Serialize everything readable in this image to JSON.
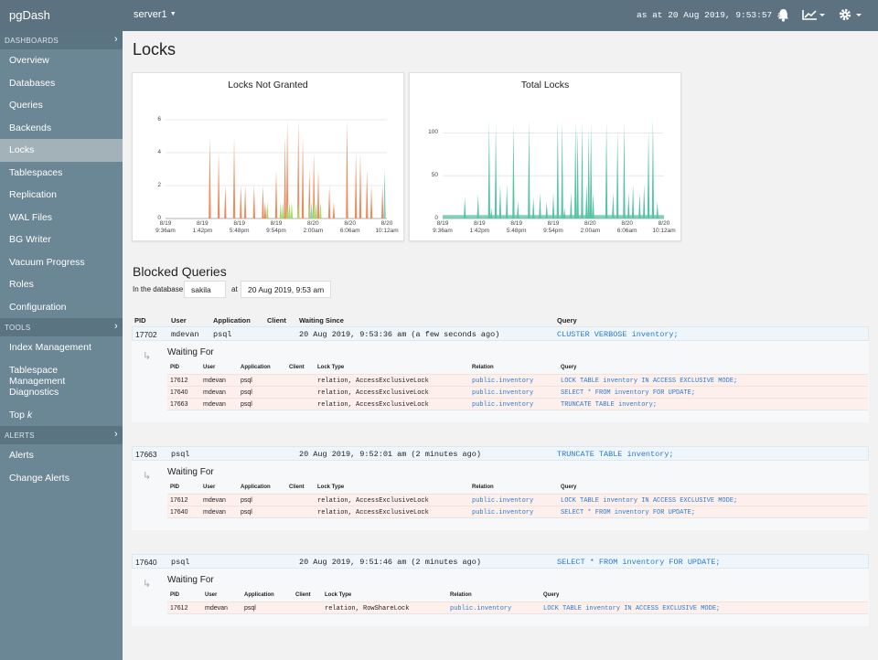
{
  "app": {
    "name": "pgDash",
    "server": "server1",
    "as_at": "as at 20 Aug 2019, 9:53:57 am"
  },
  "sidebar": {
    "dashboards_label": "DASHBOARDS",
    "dashboards": [
      "Overview",
      "Databases",
      "Queries",
      "Backends",
      "Locks",
      "Tablespaces",
      "Replication",
      "WAL Files",
      "BG Writer",
      "Vacuum Progress",
      "Roles",
      "Configuration"
    ],
    "tools_label": "TOOLS",
    "tools": [
      "Index Management",
      "Tablespace Management",
      "Diagnostics",
      "Top "
    ],
    "top_k_suffix": "k",
    "alerts_label": "ALERTS",
    "alerts": [
      "Alerts",
      "Change Alerts"
    ],
    "active": "Locks"
  },
  "page": {
    "title": "Locks",
    "blocked_title": "Blocked Queries",
    "in_db_label": "In the database",
    "database": "sakila",
    "at_label": "at",
    "datetime": "20 Aug 2019, 9:53 am"
  },
  "chart_data": [
    {
      "type": "bar",
      "title": "Locks Not Granted",
      "yticks": [
        "0",
        "2",
        "4",
        "6"
      ],
      "ylim": [
        0,
        6.5
      ],
      "xticks": [
        "8/19|9:36am",
        "8/19|1:42pm",
        "8/19|5:48pm",
        "8/19|9:54pm",
        "8/20|2:00am",
        "8/20|6:06am",
        "8/20|10:12am"
      ],
      "series": [
        {
          "color": "#f08a5d",
          "points": [
            [
              0.2,
              5
            ],
            [
              0.24,
              4
            ],
            [
              0.27,
              2
            ],
            [
              0.31,
              5
            ],
            [
              0.34,
              2
            ],
            [
              0.36,
              2
            ],
            [
              0.4,
              2
            ],
            [
              0.44,
              2
            ],
            [
              0.45,
              1
            ],
            [
              0.5,
              3
            ],
            [
              0.54,
              5
            ],
            [
              0.55,
              6
            ],
            [
              0.6,
              6
            ],
            [
              0.62,
              5
            ],
            [
              0.65,
              3
            ],
            [
              0.67,
              4
            ],
            [
              0.69,
              3
            ],
            [
              0.74,
              2
            ],
            [
              0.76,
              1
            ],
            [
              0.82,
              6
            ],
            [
              0.86,
              4
            ],
            [
              0.88,
              4
            ],
            [
              0.91,
              3
            ],
            [
              0.93,
              2
            ],
            [
              0.98,
              2
            ]
          ]
        },
        {
          "color": "#a6d96a",
          "points": [
            [
              0.46,
              1
            ],
            [
              0.52,
              1
            ],
            [
              0.53,
              1
            ],
            [
              0.55,
              1
            ],
            [
              0.56,
              1
            ],
            [
              0.57,
              1
            ],
            [
              0.6,
              1
            ],
            [
              0.65,
              1
            ],
            [
              0.67,
              1
            ],
            [
              0.68,
              1
            ],
            [
              0.7,
              1
            ]
          ]
        },
        {
          "color": "#7fcdbb",
          "points": [
            [
              0.66,
              1
            ],
            [
              0.99,
              3
            ]
          ]
        }
      ]
    },
    {
      "type": "area",
      "title": "Total Locks",
      "yticks": [
        "0",
        "50",
        "100"
      ],
      "ylim": [
        0,
        125
      ],
      "xticks": [
        "8/19|9:36am",
        "8/19|1:42pm",
        "8/19|5:48pm",
        "8/19|9:54pm",
        "8/20|2:00am",
        "8/20|6:06am",
        "8/20|10:12am"
      ],
      "baseline": 4,
      "series": [
        {
          "color": "#56c4a4",
          "points": [
            [
              0.1,
              25
            ],
            [
              0.16,
              28
            ],
            [
              0.21,
              115
            ],
            [
              0.22,
              12
            ],
            [
              0.24,
              110
            ],
            [
              0.26,
              40
            ],
            [
              0.29,
              40
            ],
            [
              0.32,
              110
            ],
            [
              0.34,
              20
            ],
            [
              0.39,
              115
            ],
            [
              0.41,
              25
            ],
            [
              0.44,
              30
            ],
            [
              0.47,
              20
            ],
            [
              0.5,
              30
            ],
            [
              0.52,
              115
            ],
            [
              0.54,
              113
            ],
            [
              0.55,
              12
            ],
            [
              0.58,
              30
            ],
            [
              0.6,
              113
            ],
            [
              0.61,
              105
            ],
            [
              0.63,
              112
            ],
            [
              0.65,
              40
            ],
            [
              0.66,
              105
            ],
            [
              0.67,
              113
            ],
            [
              0.68,
              30
            ],
            [
              0.74,
              113
            ],
            [
              0.77,
              30
            ],
            [
              0.79,
              103
            ],
            [
              0.82,
              112
            ],
            [
              0.84,
              30
            ],
            [
              0.86,
              40
            ],
            [
              0.89,
              30
            ],
            [
              0.91,
              40
            ],
            [
              0.93,
              105
            ],
            [
              0.95,
              117
            ],
            [
              0.97,
              20
            ]
          ]
        }
      ]
    }
  ],
  "blocked": {
    "columns": [
      "PID",
      "User",
      "Application",
      "Client",
      "Waiting Since",
      "Query"
    ],
    "waiting_for_label": "Waiting For",
    "sub_columns": [
      "PID",
      "User",
      "Application",
      "Client",
      "Lock Type",
      "Relation",
      "Query"
    ],
    "groups": [
      {
        "pid": "17702",
        "user": "mdevan",
        "app": "psql",
        "since": "20 Aug 2019, 9:53:36 am (a few seconds ago)",
        "query": "CLUSTER VERBOSE inventory;",
        "waits": [
          [
            "17612",
            "mdevan",
            "psql",
            "",
            "relation, AccessExclusiveLock",
            "public.inventory",
            "LOCK TABLE inventory IN ACCESS EXCLUSIVE MODE;"
          ],
          [
            "17640",
            "mdevan",
            "psql",
            "",
            "relation, AccessExclusiveLock",
            "public.inventory",
            "SELECT * FROM inventory FOR UPDATE;"
          ],
          [
            "17663",
            "mdevan",
            "psql",
            "",
            "relation, AccessExclusiveLock",
            "public.inventory",
            "TRUNCATE TABLE inventory;"
          ]
        ]
      },
      {
        "pid": "17663",
        "user": "mdevan",
        "app": "psql",
        "since": "20 Aug 2019, 9:52:01 am (2 minutes ago)",
        "query": "TRUNCATE TABLE inventory;",
        "waits": [
          [
            "17612",
            "mdevan",
            "psql",
            "",
            "relation, AccessExclusiveLock",
            "public.inventory",
            "LOCK TABLE inventory IN ACCESS EXCLUSIVE MODE;"
          ],
          [
            "17640",
            "mdevan",
            "psql",
            "",
            "relation, AccessExclusiveLock",
            "public.inventory",
            "SELECT * FROM inventory FOR UPDATE;"
          ]
        ]
      },
      {
        "pid": "17640",
        "user": "mdevan",
        "app": "psql",
        "since": "20 Aug 2019, 9:51:46 am (2 minutes ago)",
        "query": "SELECT * FROM inventory FOR UPDATE;",
        "waits": [
          [
            "17612",
            "mdevan",
            "psql",
            "",
            "relation, RowShareLock",
            "public.inventory",
            "LOCK TABLE inventory IN ACCESS EXCLUSIVE MODE;"
          ]
        ]
      }
    ]
  }
}
